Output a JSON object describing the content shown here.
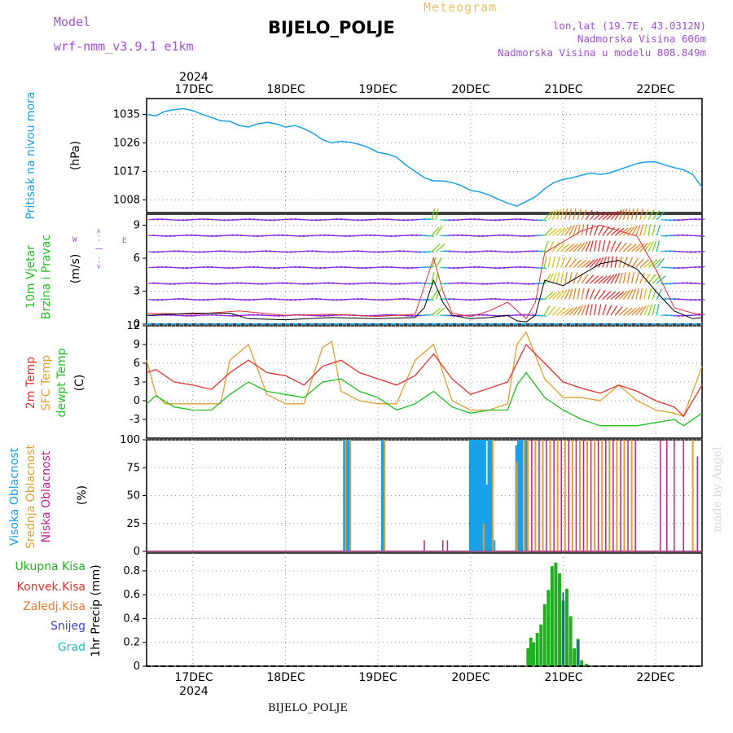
{
  "header": {
    "model_label": "Model",
    "model_name": "wrf-nmm_v3.9.1  e1km",
    "title": "BIJELO_POLJE",
    "subtitle": "Meteogram",
    "lonlat": "lon,lat (19.7E, 43.0312N)",
    "elevation": "Nadmorska Visina 606m",
    "model_elevation": "Nadmorska Visina u modelu 808.849m",
    "bottom_name": "BIJELO_POLJE",
    "credit": "made by Angel"
  },
  "time_axis": {
    "year": "2024",
    "labels": [
      "17DEC",
      "18DEC",
      "19DEC",
      "20DEC",
      "21DEC",
      "22DEC"
    ],
    "day_positions": [
      1,
      2,
      3,
      4,
      5,
      6
    ],
    "range": [
      0.5,
      6.5
    ]
  },
  "colors": {
    "pressure": "#1aa0e8",
    "wind_speed": "#000000",
    "gust": "#e83030",
    "temp2m": "#e83030",
    "sfc_temp": "#e0a030",
    "dewpoint": "#20c020",
    "high_cloud": "#1aa0e8",
    "mid_cloud": "#e0a030",
    "low_cloud": "#c0208c",
    "total_precip": "#20b020",
    "conv_precip": "#e83030",
    "frozen_precip": "#f07830",
    "snow": "#4040e0",
    "graupel": "#20c0c0"
  },
  "chart_data": [
    {
      "type": "line",
      "panel": "pressure",
      "ylabel": "Pritisak na nivou mora",
      "unit": "(hPa)",
      "yticks": [
        1035,
        1026,
        1017,
        1008
      ],
      "ylim": [
        1004,
        1040
      ],
      "x": [
        0.5,
        0.6,
        0.7,
        0.8,
        0.9,
        1.0,
        1.1,
        1.2,
        1.3,
        1.4,
        1.5,
        1.6,
        1.7,
        1.8,
        1.9,
        2.0,
        2.1,
        2.2,
        2.3,
        2.4,
        2.5,
        2.6,
        2.7,
        2.8,
        2.9,
        3.0,
        3.1,
        3.2,
        3.3,
        3.4,
        3.5,
        3.6,
        3.7,
        3.8,
        3.9,
        4.0,
        4.1,
        4.2,
        4.3,
        4.4,
        4.5,
        4.6,
        4.7,
        4.8,
        4.9,
        5.0,
        5.1,
        5.2,
        5.3,
        5.4,
        5.5,
        5.6,
        5.7,
        5.8,
        5.9,
        6.0,
        6.1,
        6.2,
        6.3,
        6.4,
        6.5
      ],
      "values": [
        1035,
        1034.5,
        1036,
        1036.5,
        1036.8,
        1036.2,
        1035,
        1034,
        1033,
        1032.8,
        1031.5,
        1031,
        1032,
        1032.5,
        1032,
        1031,
        1031.5,
        1030.5,
        1029,
        1027,
        1026,
        1026.5,
        1026.2,
        1025.5,
        1024.5,
        1023,
        1022.5,
        1021.5,
        1019,
        1017,
        1015,
        1014,
        1014,
        1013.5,
        1012.5,
        1011,
        1010.5,
        1009.5,
        1008.2,
        1007,
        1006,
        1007.5,
        1009,
        1011.5,
        1013.5,
        1014.5,
        1015,
        1015.8,
        1016.5,
        1016,
        1016.5,
        1017.5,
        1018.5,
        1019.5,
        1020,
        1020,
        1019,
        1018.2,
        1017.5,
        1016,
        1012
      ]
    },
    {
      "type": "line",
      "panel": "wind",
      "ylabel": "10m Vjetar Brzina i Pravac",
      "unit": "(m/s)",
      "direction_key": "W <--> E",
      "yticks": [
        0,
        3,
        6,
        9
      ],
      "ylim": [
        0,
        10
      ],
      "series": [
        {
          "key": "speed",
          "x": [
            0.5,
            1.0,
            1.4,
            1.6,
            2.0,
            2.5,
            3.0,
            3.4,
            3.5,
            3.6,
            3.7,
            3.8,
            4.0,
            4.2,
            4.4,
            4.5,
            4.6,
            4.7,
            4.8,
            5.0,
            5.2,
            5.4,
            5.6,
            5.8,
            6.0,
            6.2,
            6.4,
            6.5
          ],
          "values": [
            0.8,
            1.0,
            1.0,
            0.5,
            0.4,
            0.6,
            0.5,
            0.6,
            1.5,
            4.0,
            2.0,
            0.8,
            0.5,
            0.6,
            0.8,
            0.3,
            0.2,
            0.8,
            4.0,
            3.5,
            4.5,
            5.5,
            5.8,
            5.0,
            3.0,
            1.2,
            0.5,
            0.6
          ]
        },
        {
          "key": "gust",
          "x": [
            0.5,
            1.0,
            1.5,
            2.0,
            2.5,
            3.0,
            3.4,
            3.6,
            3.7,
            3.8,
            4.0,
            4.2,
            4.4,
            4.6,
            4.7,
            4.8,
            5.0,
            5.2,
            5.4,
            5.6,
            5.8,
            6.0,
            6.2,
            6.4,
            6.5
          ],
          "values": [
            1.0,
            0.9,
            1.2,
            0.8,
            0.9,
            0.7,
            0.9,
            6.0,
            3.0,
            1.0,
            0.7,
            1.2,
            2.0,
            0.5,
            2.0,
            6.5,
            7.5,
            8.5,
            9.0,
            8.5,
            8.0,
            5.0,
            1.5,
            1.0,
            0.9
          ]
        }
      ]
    },
    {
      "type": "line",
      "panel": "temperature",
      "ylabel": "2m Temp / SFC Temp / dewpt Temp",
      "unit": "(C)",
      "yticks": [
        12,
        9,
        6,
        3,
        0,
        -3
      ],
      "ylim": [
        -6,
        12
      ],
      "series": [
        {
          "key": "temp2m",
          "x": [
            0.5,
            0.6,
            0.8,
            1.0,
            1.2,
            1.4,
            1.6,
            1.8,
            2.0,
            2.2,
            2.4,
            2.6,
            2.8,
            3.0,
            3.2,
            3.4,
            3.6,
            3.8,
            4.0,
            4.2,
            4.4,
            4.5,
            4.6,
            4.8,
            5.0,
            5.2,
            5.4,
            5.6,
            5.8,
            6.0,
            6.2,
            6.3,
            6.5
          ],
          "values": [
            4.5,
            5,
            3,
            2.5,
            1.8,
            4.5,
            6.5,
            4.5,
            4,
            2.5,
            5.5,
            6.5,
            4.5,
            3.5,
            2.5,
            4,
            7.5,
            3.5,
            1,
            2,
            3,
            6,
            9,
            6,
            3,
            2,
            1.2,
            2.5,
            1.5,
            0,
            -1,
            -2.5,
            2.5
          ]
        },
        {
          "key": "sfc_temp",
          "x": [
            0.5,
            0.6,
            0.7,
            0.8,
            1.0,
            1.3,
            1.4,
            1.6,
            1.8,
            2.0,
            2.2,
            2.4,
            2.5,
            2.6,
            2.8,
            3.0,
            3.2,
            3.4,
            3.6,
            3.8,
            4.0,
            4.2,
            4.4,
            4.5,
            4.6,
            4.8,
            5.0,
            5.2,
            5.4,
            5.6,
            5.8,
            6.0,
            6.2,
            6.3,
            6.5
          ],
          "values": [
            6.5,
            1,
            -0.5,
            -0.5,
            -0.5,
            -0.5,
            6.5,
            9,
            1,
            -0.5,
            -0.5,
            8.5,
            9.5,
            1.5,
            0,
            -0.5,
            -0.5,
            6.5,
            9,
            0,
            -1.5,
            -1.5,
            -0.5,
            9,
            11,
            3.5,
            0.5,
            0.5,
            0,
            2.5,
            0,
            -1.5,
            -2,
            -2.5,
            5.5
          ]
        },
        {
          "key": "dewpoint",
          "x": [
            0.5,
            0.6,
            0.8,
            1.0,
            1.2,
            1.4,
            1.6,
            1.8,
            2.0,
            2.2,
            2.4,
            2.6,
            2.8,
            3.0,
            3.2,
            3.4,
            3.6,
            3.8,
            4.0,
            4.2,
            4.4,
            4.5,
            4.6,
            4.8,
            5.0,
            5.2,
            5.4,
            5.6,
            5.8,
            6.0,
            6.2,
            6.3,
            6.5
          ],
          "values": [
            -0.5,
            0.8,
            -1,
            -1.5,
            -1.5,
            1,
            3,
            1.5,
            1,
            0.5,
            3,
            3.5,
            1.5,
            0.5,
            -1.5,
            -0.5,
            1.5,
            -1,
            -2,
            -1.5,
            -1.5,
            2.5,
            4.5,
            0.5,
            -1.5,
            -3,
            -4,
            -4,
            -4,
            -3.5,
            -3,
            -4,
            -2
          ]
        }
      ]
    },
    {
      "type": "bar",
      "panel": "cloud",
      "ylabel": "Visoka Oblacnost / Srednja Oblacnost / Niska Oblacnost",
      "unit": "(%)",
      "yticks": [
        100,
        75,
        50,
        25,
        0
      ],
      "ylim": [
        0,
        100
      ],
      "series": [
        {
          "key": "high",
          "x": [
            2.64,
            2.66,
            2.68,
            3.05,
            4.0,
            4.03,
            4.06,
            4.09,
            4.12,
            4.15,
            4.18,
            4.2,
            4.22,
            4.25,
            4.5,
            4.52,
            4.55,
            4.6
          ],
          "values": [
            100,
            100,
            100,
            100,
            100,
            100,
            100,
            100,
            100,
            100,
            60,
            100,
            100,
            10,
            95,
            100,
            100,
            100
          ]
        },
        {
          "key": "mid",
          "x": [
            2.65,
            2.7,
            3.07,
            4.14,
            4.24,
            4.5,
            4.58,
            4.62,
            4.7,
            4.78,
            4.86,
            4.94,
            5.02,
            5.1,
            5.18,
            5.26,
            5.34,
            5.42,
            5.5,
            5.58,
            5.66,
            5.74,
            6.4
          ],
          "values": [
            100,
            100,
            100,
            25,
            100,
            80,
            100,
            100,
            100,
            100,
            100,
            100,
            100,
            100,
            100,
            100,
            100,
            100,
            100,
            100,
            100,
            100,
            100
          ]
        },
        {
          "key": "low",
          "x": [
            3.5,
            3.7,
            3.75,
            4.66,
            4.74,
            4.82,
            4.9,
            4.98,
            5.06,
            5.14,
            5.22,
            5.3,
            5.38,
            5.46,
            5.54,
            5.62,
            5.7,
            5.78,
            6.05,
            6.12,
            6.2,
            6.3,
            6.45
          ],
          "values": [
            10,
            10,
            10,
            100,
            100,
            100,
            100,
            100,
            100,
            100,
            100,
            100,
            100,
            100,
            100,
            100,
            100,
            100,
            100,
            100,
            100,
            100,
            85
          ]
        }
      ]
    },
    {
      "type": "bar",
      "panel": "precip",
      "ylabel": "1hr Precip",
      "unit": "(mm)",
      "yticks": [
        0.8,
        0.6,
        0.4,
        0.2,
        0
      ],
      "ylim": [
        0,
        0.95
      ],
      "legend": [
        "Ukupna Kisa",
        "Konvek.Kisa",
        "Zaledj.Kisa",
        "Snijeg",
        "Grad"
      ],
      "x": [
        4.62,
        4.65,
        4.68,
        4.72,
        4.76,
        4.8,
        4.84,
        4.88,
        4.92,
        4.96,
        5.0,
        5.04,
        5.08,
        5.12,
        5.16,
        5.2,
        5.25
      ],
      "values": [
        0.15,
        0.24,
        0.2,
        0.28,
        0.35,
        0.52,
        0.64,
        0.84,
        0.87,
        0.78,
        0.55,
        0.65,
        0.42,
        0.15,
        0.23,
        0.05,
        0.02
      ]
    }
  ]
}
